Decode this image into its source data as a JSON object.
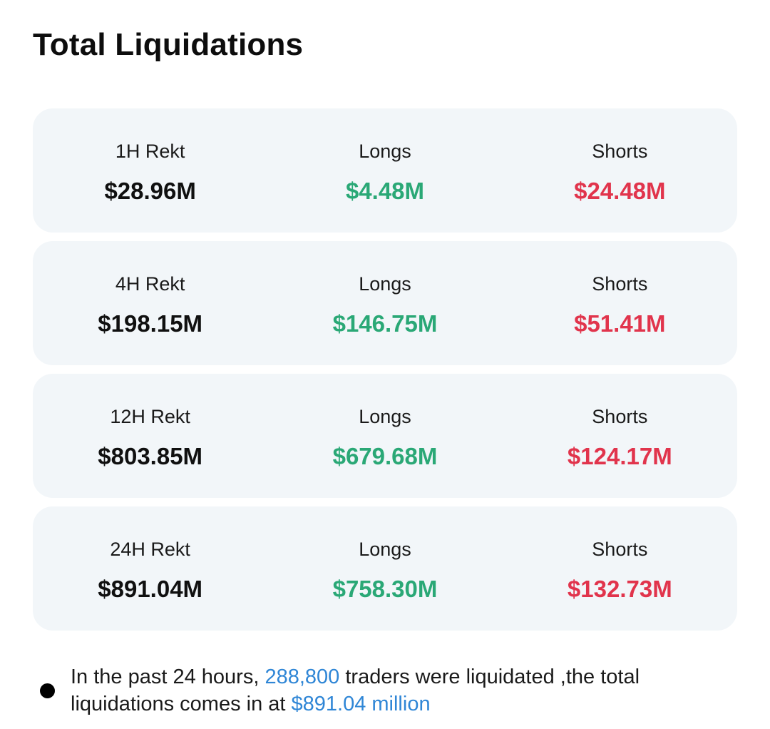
{
  "page": {
    "title": "Total Liquidations"
  },
  "colors": {
    "longs": "#2aa876",
    "shorts": "#e1344c",
    "highlight": "#2f86d6",
    "card_bg": "#f2f6f9"
  },
  "cards": [
    {
      "period_label": "1H Rekt",
      "total": "$28.96M",
      "longs_label": "Longs",
      "longs": "$4.48M",
      "shorts_label": "Shorts",
      "shorts": "$24.48M"
    },
    {
      "period_label": "4H Rekt",
      "total": "$198.15M",
      "longs_label": "Longs",
      "longs": "$146.75M",
      "shorts_label": "Shorts",
      "shorts": "$51.41M"
    },
    {
      "period_label": "12H Rekt",
      "total": "$803.85M",
      "longs_label": "Longs",
      "longs": "$679.68M",
      "shorts_label": "Shorts",
      "shorts": "$124.17M"
    },
    {
      "period_label": "24H Rekt",
      "total": "$891.04M",
      "longs_label": "Longs",
      "longs": "$758.30M",
      "shorts_label": "Shorts",
      "shorts": "$132.73M"
    }
  ],
  "summary": {
    "prefix": "In the past 24 hours, ",
    "traders_count": "288,800",
    "middle": " traders were liquidated ,the total liquidations comes in at ",
    "total_amount": "$891.04 million"
  }
}
